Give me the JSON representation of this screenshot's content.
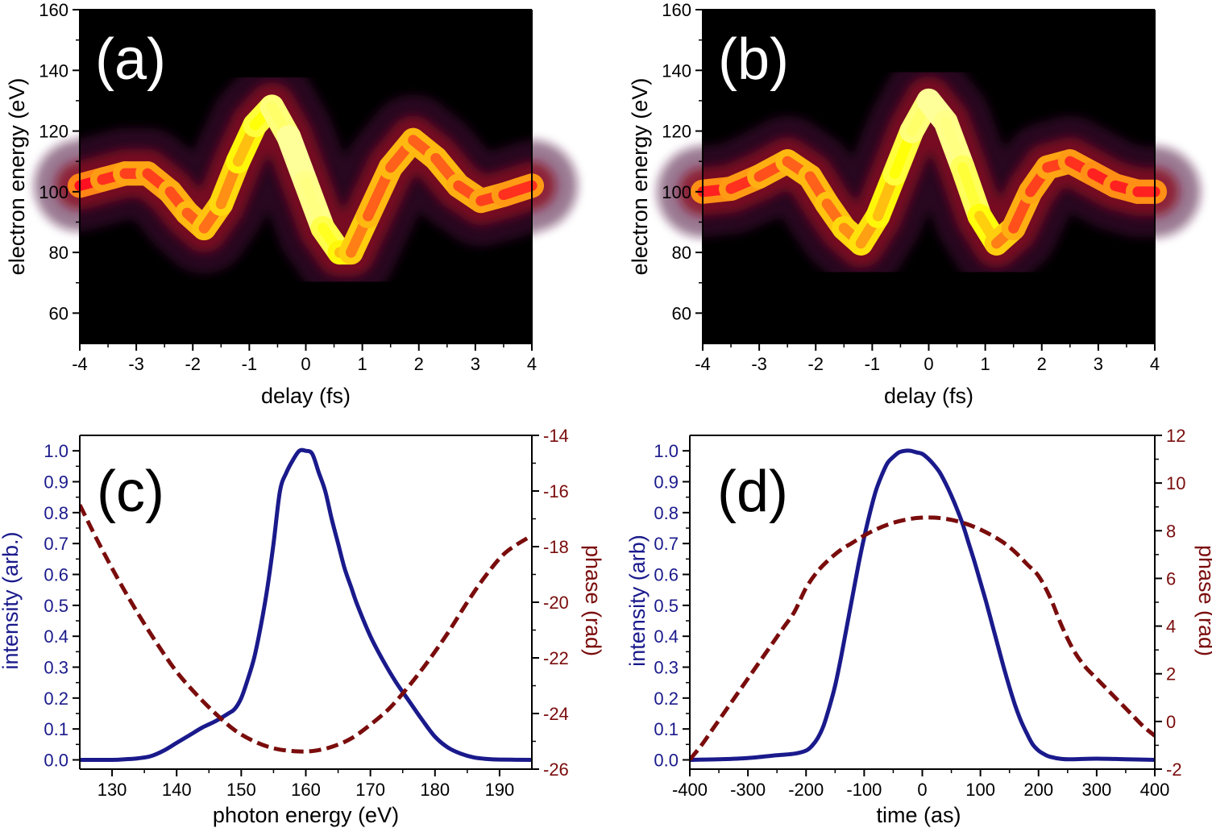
{
  "colors": {
    "intensity": "#1a1a8c",
    "phase": "#7a0c0c",
    "axis": "#000000",
    "map_bg": "#000000"
  },
  "chart_data": [
    {
      "id": "a",
      "type": "heatmap",
      "panel_label": "(a)",
      "xlabel": "delay (fs)",
      "ylabel": "electron energy (eV)",
      "xlim": [
        -4,
        4
      ],
      "ylim": [
        50,
        160
      ],
      "xticks": [
        -4,
        -3,
        -2,
        -1,
        0,
        1,
        2,
        3,
        4
      ],
      "xtick_labels": [
        "-4",
        "-3",
        "-2",
        "-1",
        "0",
        "1",
        "2",
        "3",
        "4"
      ],
      "yticks": [
        60,
        80,
        100,
        120,
        140,
        160
      ],
      "ytick_labels": [
        "60",
        "80",
        "100",
        "120",
        "140",
        "160"
      ],
      "colormap": "hot",
      "ridge": {
        "x": [
          -4,
          -3.6,
          -3.2,
          -2.8,
          -2.4,
          -2.1,
          -1.8,
          -1.5,
          -1.2,
          -0.9,
          -0.6,
          -0.3,
          0,
          0.3,
          0.6,
          0.8,
          1.1,
          1.5,
          1.9,
          2.3,
          2.7,
          3.1,
          3.5,
          4
        ],
        "y": [
          102,
          104,
          106,
          106,
          100,
          93,
          88,
          96,
          110,
          122,
          128,
          118,
          103,
          88,
          80,
          80,
          92,
          108,
          117,
          111,
          102,
          97,
          99,
          102
        ],
        "peak": [
          0.45,
          0.5,
          0.55,
          0.55,
          0.55,
          0.6,
          0.6,
          0.65,
          0.7,
          0.8,
          0.9,
          1.0,
          1.0,
          0.95,
          0.8,
          0.7,
          0.6,
          0.6,
          0.6,
          0.6,
          0.6,
          0.55,
          0.55,
          0.5
        ],
        "width": 5
      }
    },
    {
      "id": "b",
      "type": "heatmap",
      "panel_label": "(b)",
      "xlabel": "delay (fs)",
      "ylabel": "electron energy (eV)",
      "xlim": [
        -4,
        4
      ],
      "ylim": [
        50,
        160
      ],
      "xticks": [
        -4,
        -3,
        -2,
        -1,
        0,
        1,
        2,
        3,
        4
      ],
      "xtick_labels": [
        "-4",
        "-3",
        "-2",
        "-1",
        "0",
        "1",
        "2",
        "3",
        "4"
      ],
      "yticks": [
        60,
        80,
        100,
        120,
        140,
        160
      ],
      "ytick_labels": [
        "60",
        "80",
        "100",
        "120",
        "140",
        "160"
      ],
      "colormap": "hot",
      "ridge": {
        "x": [
          -4,
          -3.5,
          -3,
          -2.5,
          -2.1,
          -1.8,
          -1.5,
          -1.2,
          -0.9,
          -0.6,
          -0.3,
          0,
          0.3,
          0.6,
          0.9,
          1.2,
          1.5,
          1.8,
          2.1,
          2.5,
          2.9,
          3.3,
          3.7,
          4
        ],
        "y": [
          100,
          101,
          105,
          110,
          105,
          96,
          88,
          83,
          92,
          106,
          120,
          130,
          123,
          108,
          92,
          83,
          88,
          100,
          108,
          110,
          106,
          102,
          100,
          100
        ],
        "peak": [
          0.5,
          0.5,
          0.55,
          0.6,
          0.6,
          0.6,
          0.65,
          0.7,
          0.7,
          0.8,
          0.9,
          1.0,
          1.0,
          0.95,
          0.85,
          0.7,
          0.6,
          0.55,
          0.55,
          0.55,
          0.5,
          0.5,
          0.5,
          0.5
        ],
        "width": 5
      }
    },
    {
      "id": "c",
      "type": "line",
      "panel_label": "(c)",
      "xlabel": "photon energy (eV)",
      "ylabel": "intensity (arb.)",
      "y2label": "phase (rad)",
      "xlim": [
        125,
        195
      ],
      "ylim": [
        -0.03,
        1.05
      ],
      "y2lim": [
        -26,
        -14
      ],
      "xticks": [
        130,
        140,
        150,
        160,
        170,
        180,
        190
      ],
      "xtick_labels": [
        "130",
        "140",
        "150",
        "160",
        "170",
        "180",
        "190"
      ],
      "yticks": [
        0.0,
        0.1,
        0.2,
        0.3,
        0.4,
        0.5,
        0.6,
        0.7,
        0.8,
        0.9,
        1.0
      ],
      "ytick_labels": [
        "0.0",
        "0.1",
        "0.2",
        "0.3",
        "0.4",
        "0.5",
        "0.6",
        "0.7",
        "0.8",
        "0.9",
        "1.0"
      ],
      "y2ticks": [
        -26,
        -24,
        -22,
        -20,
        -18,
        -16,
        -14
      ],
      "y2tick_labels": [
        "-26",
        "-24",
        "-22",
        "-20",
        "-18",
        "-16",
        "-14"
      ],
      "series": [
        {
          "name": "intensity",
          "axis": "left",
          "style": "solid",
          "x": [
            125,
            130,
            132,
            134,
            136,
            138,
            140,
            142,
            144,
            146,
            148,
            149,
            150,
            151,
            152,
            153,
            154,
            155,
            156,
            157,
            158,
            159,
            160,
            161,
            162,
            163,
            164,
            165,
            166,
            167,
            168,
            170,
            172,
            174,
            176,
            178,
            180,
            182,
            184,
            186,
            188,
            190,
            195
          ],
          "y": [
            0.0,
            0.0,
            0.002,
            0.005,
            0.012,
            0.03,
            0.055,
            0.08,
            0.105,
            0.125,
            0.15,
            0.165,
            0.2,
            0.26,
            0.33,
            0.43,
            0.55,
            0.7,
            0.87,
            0.93,
            0.97,
            1.0,
            1.0,
            0.99,
            0.93,
            0.87,
            0.78,
            0.7,
            0.62,
            0.56,
            0.5,
            0.4,
            0.32,
            0.25,
            0.19,
            0.13,
            0.075,
            0.04,
            0.02,
            0.008,
            0.003,
            0.001,
            0.0
          ]
        },
        {
          "name": "phase",
          "axis": "right",
          "style": "dashed",
          "x": [
            125,
            128,
            131,
            134,
            137,
            140,
            143,
            146,
            149,
            152,
            155,
            158,
            161,
            164,
            167,
            170,
            173,
            176,
            179,
            182,
            185,
            188,
            191,
            195
          ],
          "y": [
            -16.5,
            -17.9,
            -19.2,
            -20.4,
            -21.5,
            -22.5,
            -23.3,
            -24.0,
            -24.6,
            -25.0,
            -25.25,
            -25.35,
            -25.35,
            -25.2,
            -24.9,
            -24.4,
            -23.8,
            -23.0,
            -22.1,
            -21.1,
            -20.0,
            -19.0,
            -18.2,
            -17.6
          ]
        }
      ]
    },
    {
      "id": "d",
      "type": "line",
      "panel_label": "(d)",
      "xlabel": "time (as)",
      "ylabel": "intensity (arb)",
      "y2label": "phase (rad)",
      "xlim": [
        -400,
        400
      ],
      "ylim": [
        -0.03,
        1.05
      ],
      "y2lim": [
        -2,
        12
      ],
      "xticks": [
        -400,
        -300,
        -200,
        -100,
        0,
        100,
        200,
        300,
        400
      ],
      "xtick_labels": [
        "-400",
        "-300",
        "-200",
        "-100",
        "0",
        "100",
        "200",
        "300",
        "400"
      ],
      "yticks": [
        0.0,
        0.1,
        0.2,
        0.3,
        0.4,
        0.5,
        0.6,
        0.7,
        0.8,
        0.9,
        1.0
      ],
      "ytick_labels": [
        "0.0",
        "0.1",
        "0.2",
        "0.3",
        "0.4",
        "0.5",
        "0.6",
        "0.7",
        "0.8",
        "0.9",
        "1.0"
      ],
      "y2ticks": [
        -2,
        0,
        2,
        4,
        6,
        8,
        10,
        12
      ],
      "y2tick_labels": [
        "-2",
        "0",
        "2",
        "4",
        "6",
        "8",
        "10",
        "12"
      ],
      "series": [
        {
          "name": "intensity",
          "axis": "left",
          "style": "solid",
          "x": [
            -400,
            -350,
            -300,
            -250,
            -220,
            -200,
            -190,
            -180,
            -170,
            -160,
            -150,
            -140,
            -130,
            -120,
            -110,
            -100,
            -90,
            -80,
            -70,
            -60,
            -50,
            -40,
            -30,
            -20,
            -10,
            0,
            10,
            20,
            30,
            40,
            50,
            60,
            70,
            80,
            90,
            100,
            110,
            120,
            130,
            140,
            150,
            160,
            170,
            180,
            190,
            200,
            210,
            220,
            240,
            260,
            300,
            350,
            400
          ],
          "y": [
            0.0,
            0.002,
            0.006,
            0.015,
            0.02,
            0.03,
            0.045,
            0.07,
            0.11,
            0.17,
            0.24,
            0.33,
            0.43,
            0.53,
            0.63,
            0.72,
            0.8,
            0.87,
            0.92,
            0.96,
            0.98,
            0.995,
            1.0,
            1.0,
            0.995,
            0.99,
            0.975,
            0.955,
            0.93,
            0.895,
            0.855,
            0.81,
            0.76,
            0.7,
            0.64,
            0.575,
            0.51,
            0.44,
            0.37,
            0.3,
            0.235,
            0.175,
            0.125,
            0.085,
            0.05,
            0.03,
            0.018,
            0.01,
            0.003,
            0.002,
            0.004,
            0.002,
            0.0
          ]
        },
        {
          "name": "phase",
          "axis": "right",
          "style": "dashed",
          "x": [
            -400,
            -380,
            -360,
            -340,
            -320,
            -300,
            -280,
            -260,
            -240,
            -220,
            -200,
            -180,
            -160,
            -140,
            -120,
            -100,
            -80,
            -60,
            -40,
            -20,
            0,
            20,
            40,
            60,
            80,
            100,
            120,
            140,
            160,
            180,
            200,
            220,
            240,
            260,
            280,
            300,
            320,
            340,
            360,
            380,
            400
          ],
          "y": [
            -1.6,
            -1.0,
            -0.3,
            0.4,
            1.1,
            1.8,
            2.5,
            3.2,
            3.9,
            4.6,
            5.6,
            6.3,
            6.8,
            7.2,
            7.5,
            7.8,
            8.05,
            8.25,
            8.4,
            8.5,
            8.55,
            8.55,
            8.5,
            8.4,
            8.25,
            8.05,
            7.8,
            7.5,
            7.1,
            6.6,
            6.1,
            5.2,
            4.0,
            3.0,
            2.3,
            1.8,
            1.3,
            0.8,
            0.3,
            -0.2,
            -0.6
          ]
        }
      ]
    }
  ]
}
